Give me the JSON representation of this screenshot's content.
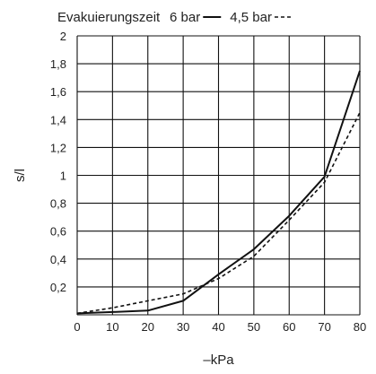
{
  "chart_data": {
    "type": "line",
    "title": "Evakuierungszeit",
    "xlabel": "–kPa",
    "ylabel": "s/l",
    "x": [
      0,
      10,
      20,
      30,
      40,
      50,
      60,
      70,
      80
    ],
    "xticks": [
      "0",
      "10",
      "20",
      "30",
      "40",
      "50",
      "60",
      "70",
      "80"
    ],
    "yticks": [
      "0,2",
      "0,4",
      "0,6",
      "0,8",
      "1",
      "1,2",
      "1,4",
      "1,6",
      "1,8",
      "2"
    ],
    "xlim": [
      0,
      80
    ],
    "ylim": [
      0,
      2
    ],
    "grid": true,
    "legend_position": "top-right",
    "series": [
      {
        "name": "6 bar",
        "style": "solid",
        "values": [
          0.01,
          0.02,
          0.03,
          0.1,
          0.29,
          0.47,
          0.71,
          0.99,
          1.75
        ]
      },
      {
        "name": "4,5 bar",
        "style": "dashed",
        "values": [
          0.01,
          0.05,
          0.1,
          0.15,
          0.26,
          0.42,
          0.68,
          0.95,
          1.45
        ]
      }
    ],
    "colors": {
      "line": "#111111",
      "grid": "#111111",
      "text": "#222222"
    }
  }
}
